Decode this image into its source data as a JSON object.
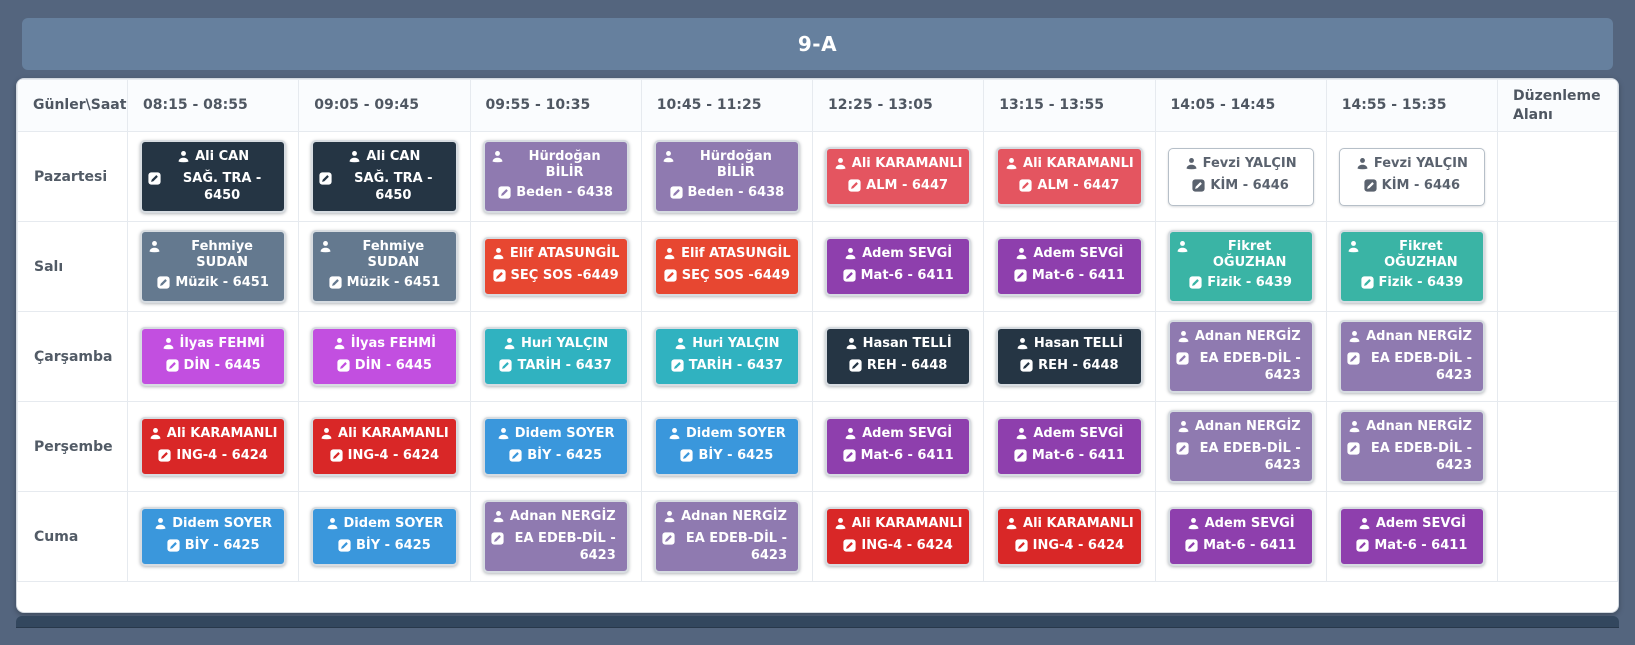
{
  "header": {
    "title": "9-A"
  },
  "timetable": {
    "corner_label": "Günler\\Saat",
    "times": [
      "08:15 - 08:55",
      "09:05 - 09:45",
      "09:55 - 10:35",
      "10:45 - 11:25",
      "12:25 - 13:05",
      "13:15 - 13:55",
      "14:05 - 14:45",
      "14:55 - 15:35"
    ],
    "edit_column_label": "Düzenleme Alanı",
    "days": [
      {
        "label": "Pazartesi",
        "lessons": [
          {
            "teacher": "Ali CAN",
            "lesson": "SAĞ. TRA - 6450",
            "style": "navy"
          },
          {
            "teacher": "Ali CAN",
            "lesson": "SAĞ. TRA - 6450",
            "style": "navy"
          },
          {
            "teacher": "Hürdoğan BİLİR",
            "lesson": "Beden - 6438",
            "style": "lavender"
          },
          {
            "teacher": "Hürdoğan BİLİR",
            "lesson": "Beden - 6438",
            "style": "lavender"
          },
          {
            "teacher": "Ali KARAMANLI",
            "lesson": "ALM - 6447",
            "style": "coral"
          },
          {
            "teacher": "Ali KARAMANLI",
            "lesson": "ALM - 6447",
            "style": "coral"
          },
          {
            "teacher": "Fevzi YALÇIN",
            "lesson": "KİM - 6446",
            "style": "outline"
          },
          {
            "teacher": "Fevzi YALÇIN",
            "lesson": "KİM - 6446",
            "style": "outline"
          }
        ]
      },
      {
        "label": "Salı",
        "lessons": [
          {
            "teacher": "Fehmiye SUDAN",
            "lesson": "Müzik - 6451",
            "style": "slate"
          },
          {
            "teacher": "Fehmiye SUDAN",
            "lesson": "Müzik - 6451",
            "style": "slate"
          },
          {
            "teacher": "Elif ATASUNGİL",
            "lesson": "SEÇ SOS -6449",
            "style": "flame"
          },
          {
            "teacher": "Elif ATASUNGİL",
            "lesson": "SEÇ SOS -6449",
            "style": "flame"
          },
          {
            "teacher": "Adem SEVGİ",
            "lesson": "Mat-6 - 6411",
            "style": "purple"
          },
          {
            "teacher": "Adem SEVGİ",
            "lesson": "Mat-6 - 6411",
            "style": "purple"
          },
          {
            "teacher": "Fikret OĞUZHAN",
            "lesson": "Fizik - 6439",
            "style": "teal"
          },
          {
            "teacher": "Fikret OĞUZHAN",
            "lesson": "Fizik - 6439",
            "style": "teal"
          }
        ]
      },
      {
        "label": "Çarşamba",
        "lessons": [
          {
            "teacher": "İlyas FEHMİ",
            "lesson": "DİN - 6445",
            "style": "magenta"
          },
          {
            "teacher": "İlyas FEHMİ",
            "lesson": "DİN - 6445",
            "style": "magenta"
          },
          {
            "teacher": "Huri YALÇIN",
            "lesson": "TARİH - 6437",
            "style": "cyan"
          },
          {
            "teacher": "Huri YALÇIN",
            "lesson": "TARİH - 6437",
            "style": "cyan"
          },
          {
            "teacher": "Hasan TELLİ",
            "lesson": "REH - 6448",
            "style": "navy"
          },
          {
            "teacher": "Hasan TELLİ",
            "lesson": "REH - 6448",
            "style": "navy"
          },
          {
            "teacher": "Adnan NERGİZ",
            "lesson": "EA EDEB-DİL - 6423",
            "style": "lavender",
            "wide": true
          },
          {
            "teacher": "Adnan NERGİZ",
            "lesson": "EA EDEB-DİL - 6423",
            "style": "lavender",
            "wide": true
          }
        ]
      },
      {
        "label": "Perşembe",
        "lessons": [
          {
            "teacher": "Ali KARAMANLI",
            "lesson": "ING-4 - 6424",
            "style": "red"
          },
          {
            "teacher": "Ali KARAMANLI",
            "lesson": "ING-4 - 6424",
            "style": "red"
          },
          {
            "teacher": "Didem SOYER",
            "lesson": "BİY - 6425",
            "style": "blue"
          },
          {
            "teacher": "Didem SOYER",
            "lesson": "BİY - 6425",
            "style": "blue"
          },
          {
            "teacher": "Adem SEVGİ",
            "lesson": "Mat-6 - 6411",
            "style": "purple"
          },
          {
            "teacher": "Adem SEVGİ",
            "lesson": "Mat-6 - 6411",
            "style": "purple"
          },
          {
            "teacher": "Adnan NERGİZ",
            "lesson": "EA EDEB-DİL - 6423",
            "style": "lavender",
            "wide": true
          },
          {
            "teacher": "Adnan NERGİZ",
            "lesson": "EA EDEB-DİL - 6423",
            "style": "lavender",
            "wide": true
          }
        ]
      },
      {
        "label": "Cuma",
        "lessons": [
          {
            "teacher": "Didem SOYER",
            "lesson": "BİY - 6425",
            "style": "blue"
          },
          {
            "teacher": "Didem SOYER",
            "lesson": "BİY - 6425",
            "style": "blue"
          },
          {
            "teacher": "Adnan NERGİZ",
            "lesson": "EA EDEB-DİL - 6423",
            "style": "lavender",
            "wide": true
          },
          {
            "teacher": "Adnan NERGİZ",
            "lesson": "EA EDEB-DİL - 6423",
            "style": "lavender",
            "wide": true
          },
          {
            "teacher": "Ali KARAMANLI",
            "lesson": "ING-4 - 6424",
            "style": "red"
          },
          {
            "teacher": "Ali KARAMANLI",
            "lesson": "ING-4 - 6424",
            "style": "red"
          },
          {
            "teacher": "Adem SEVGİ",
            "lesson": "Mat-6 - 6411",
            "style": "purple"
          },
          {
            "teacher": "Adem SEVGİ",
            "lesson": "Mat-6 - 6411",
            "style": "purple"
          }
        ]
      }
    ]
  },
  "styles": {
    "navy": {
      "bg": "#253544",
      "text": "#ffffff"
    },
    "slate": {
      "bg": "#64798f",
      "text": "#ffffff"
    },
    "lavender": {
      "bg": "#8f7ab0",
      "text": "#ffffff"
    },
    "coral": {
      "bg": "#e45560",
      "text": "#ffffff"
    },
    "flame": {
      "bg": "#e74731",
      "text": "#ffffff"
    },
    "purple": {
      "bg": "#8e3fad",
      "text": "#ffffff"
    },
    "teal": {
      "bg": "#3ab4a5",
      "text": "#ffffff"
    },
    "cyan": {
      "bg": "#30b2c0",
      "text": "#ffffff"
    },
    "magenta": {
      "bg": "#c24fe0",
      "text": "#ffffff"
    },
    "blue": {
      "bg": "#3a97dc",
      "text": "#ffffff"
    },
    "red": {
      "bg": "#d92727",
      "text": "#ffffff"
    },
    "outline": {
      "bg": "#ffffff",
      "text": "#5a626e"
    }
  },
  "page_colors": {
    "background": "#54657e",
    "title_bar": "#66809e",
    "sheet": "#ffffff",
    "table_border": "#e6eaef",
    "bottom_bar": "#33475e"
  },
  "icons": {
    "teacher": "user-icon",
    "lesson": "pen-square-icon"
  }
}
